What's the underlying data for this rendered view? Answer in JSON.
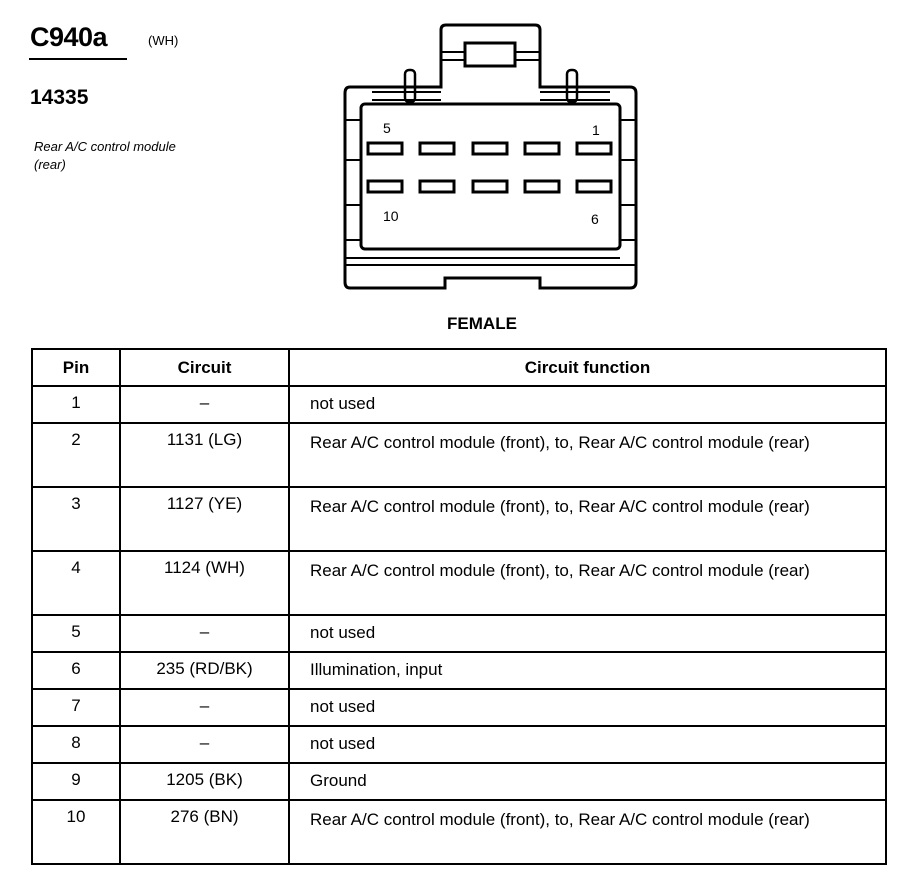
{
  "connector": {
    "id": "C940a",
    "color_code": "(WH)",
    "part_number": "14335",
    "description": "Rear A/C control module (rear)",
    "gender": "FEMALE",
    "pin_labels": {
      "top_left": "5",
      "top_right": "1",
      "bottom_left": "10",
      "bottom_right": "6"
    }
  },
  "table": {
    "headers": {
      "pin": "Pin",
      "circuit": "Circuit",
      "function": "Circuit function"
    },
    "rows": [
      {
        "pin": "1",
        "circuit": "–",
        "function": "not used"
      },
      {
        "pin": "2",
        "circuit": "1131 (LG)",
        "function": "Rear A/C control module (front), to, Rear A/C control module (rear)"
      },
      {
        "pin": "3",
        "circuit": "1127 (YE)",
        "function": "Rear A/C control module (front), to, Rear A/C control module (rear)"
      },
      {
        "pin": "4",
        "circuit": "1124 (WH)",
        "function": "Rear A/C control module (front), to, Rear A/C control module (rear)"
      },
      {
        "pin": "5",
        "circuit": "–",
        "function": "not used"
      },
      {
        "pin": "6",
        "circuit": "235 (RD/BK)",
        "function": "Illumination, input"
      },
      {
        "pin": "7",
        "circuit": "–",
        "function": "not used"
      },
      {
        "pin": "8",
        "circuit": "–",
        "function": "not used"
      },
      {
        "pin": "9",
        "circuit": "1205 (BK)",
        "function": "Ground"
      },
      {
        "pin": "10",
        "circuit": "276 (BN)",
        "function": "Rear A/C control module (front), to, Rear A/C control module (rear)"
      }
    ]
  }
}
